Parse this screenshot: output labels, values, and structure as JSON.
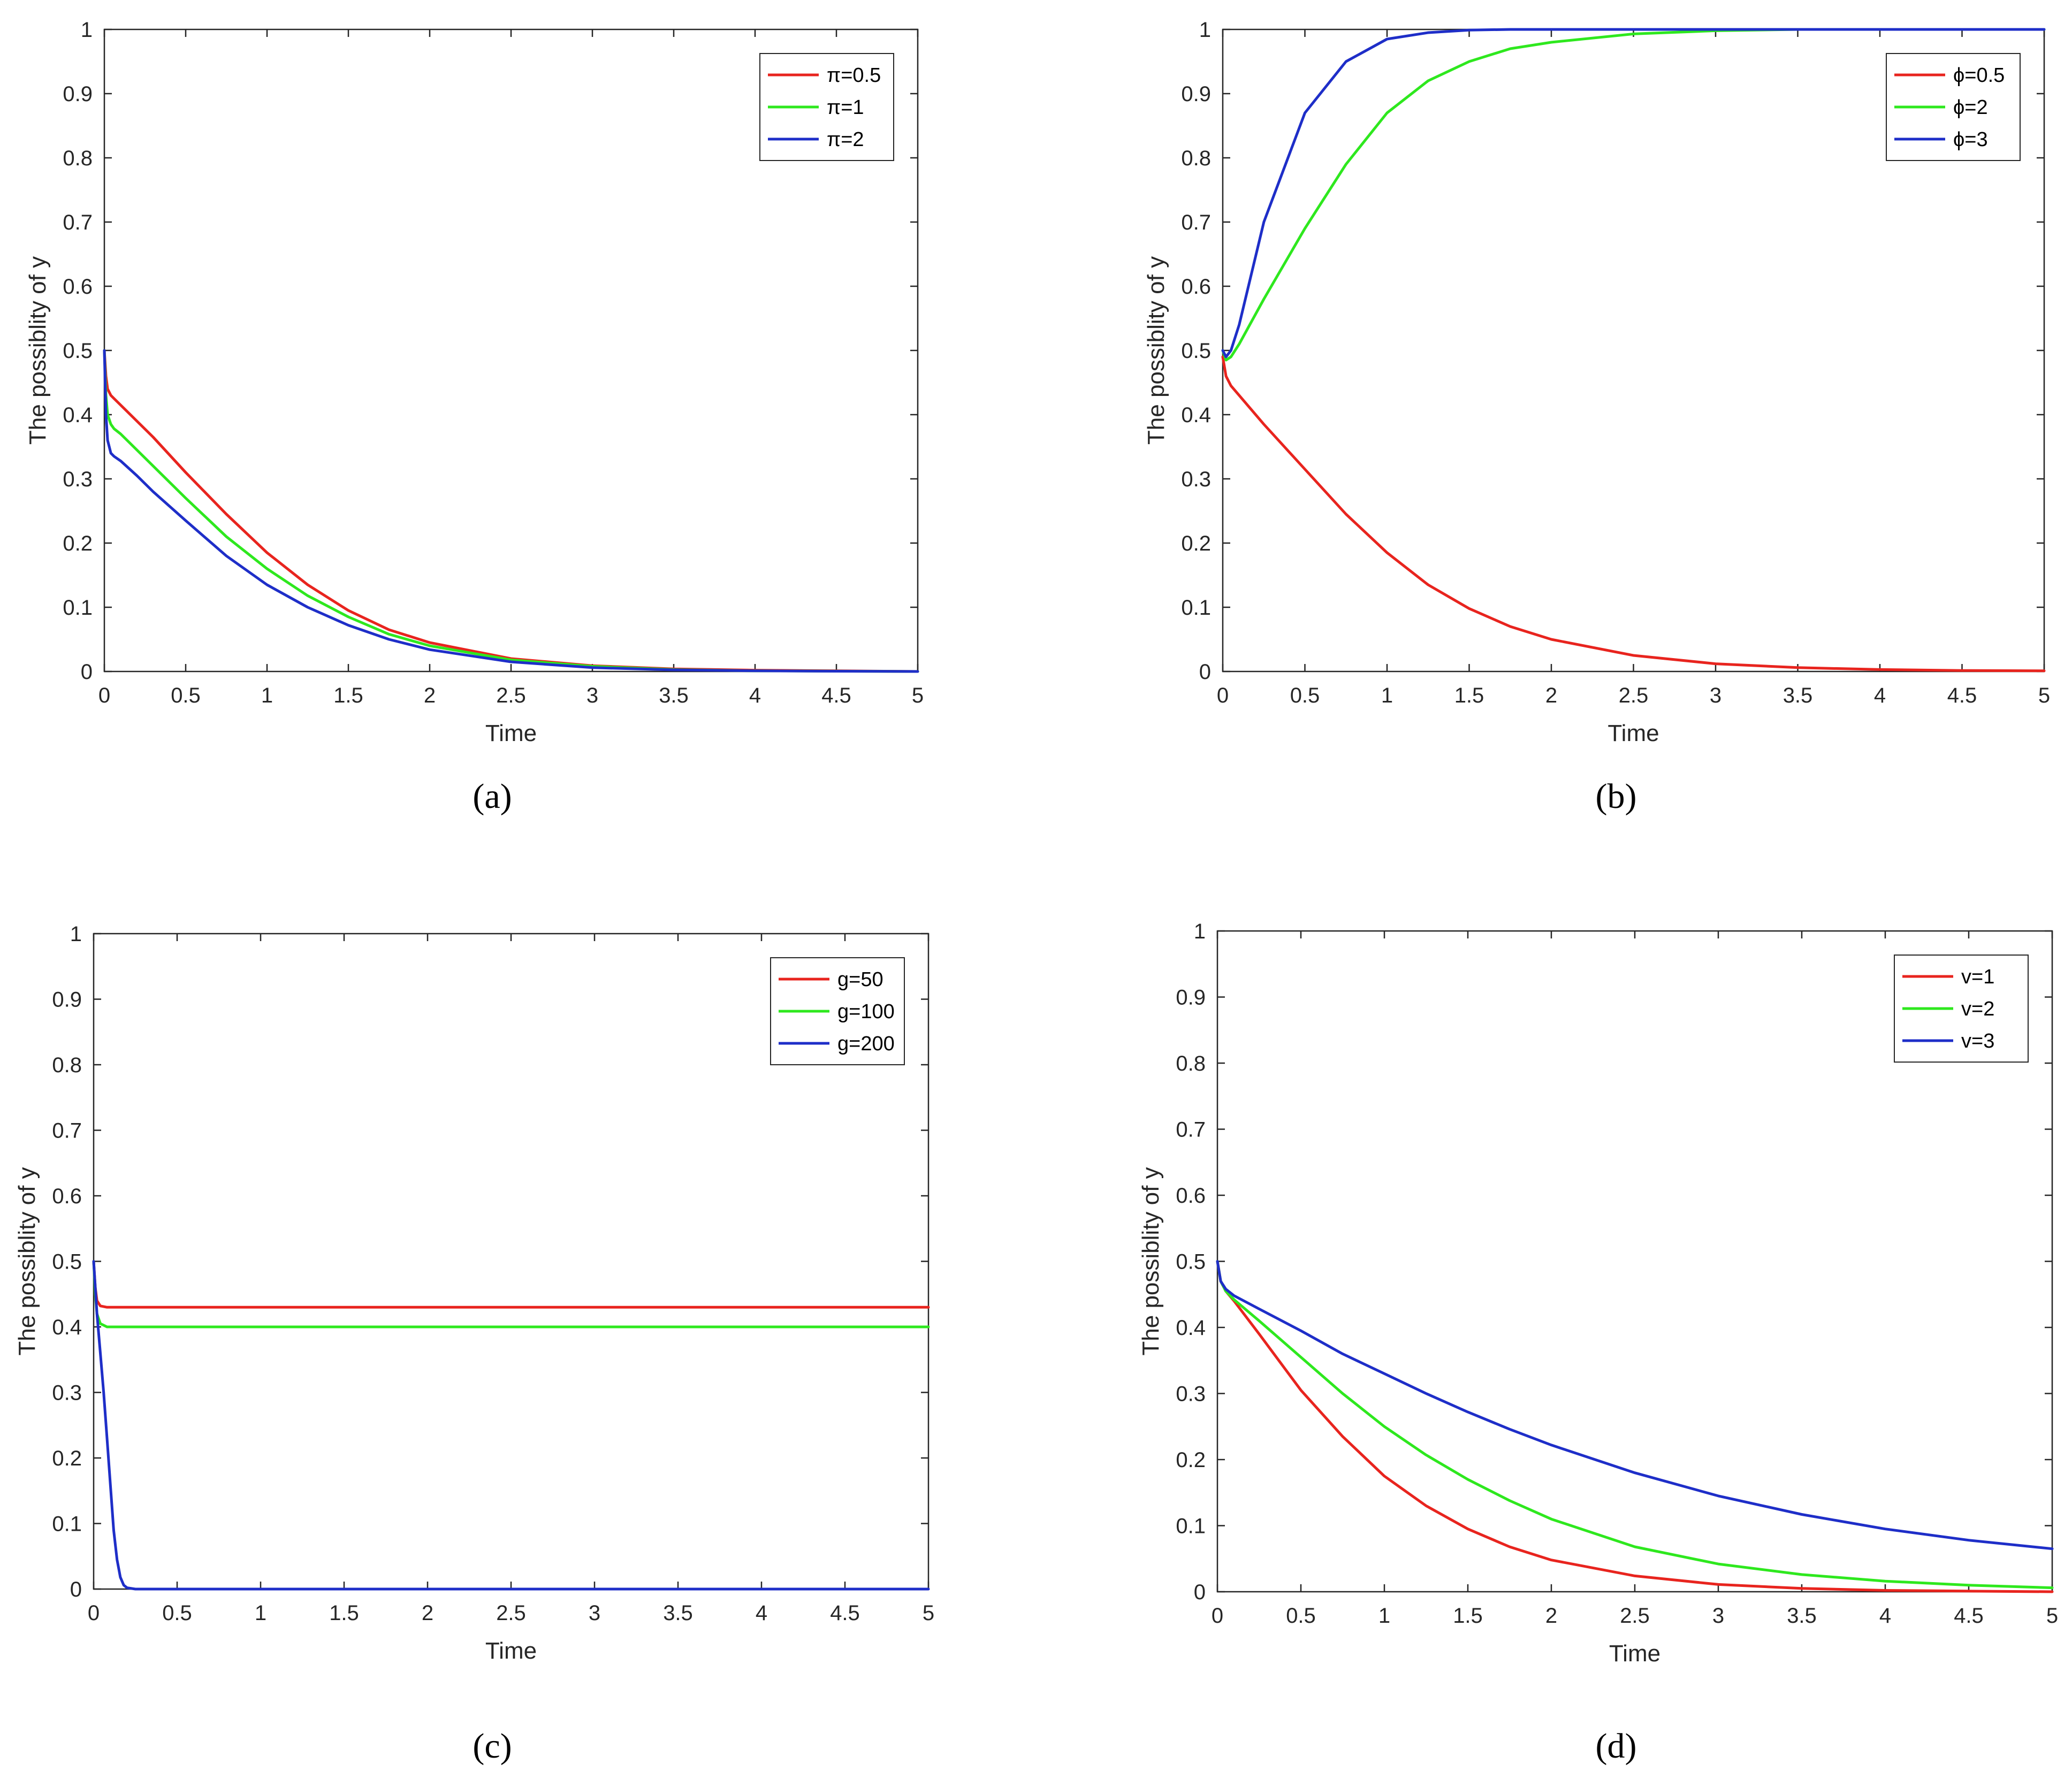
{
  "chart_data": [
    {
      "type": "line",
      "caption": "(a)",
      "xlabel": "Time",
      "ylabel": "The possiblity of y",
      "xlim": [
        0,
        5
      ],
      "ylim": [
        0,
        1
      ],
      "xticks": [
        "0",
        "0.5",
        "1",
        "1.5",
        "2",
        "2.5",
        "3",
        "3.5",
        "4",
        "4.5",
        "5"
      ],
      "yticks": [
        "0",
        "0.1",
        "0.2",
        "0.3",
        "0.4",
        "0.5",
        "0.6",
        "0.7",
        "0.8",
        "0.9",
        "1"
      ],
      "legend_position": "top-right",
      "series": [
        {
          "name": "π=0.5",
          "color": "#e8241e",
          "x": [
            0,
            0.01,
            0.02,
            0.04,
            0.06,
            0.1,
            0.2,
            0.3,
            0.5,
            0.75,
            1,
            1.25,
            1.5,
            1.75,
            2,
            2.5,
            3,
            3.5,
            4,
            4.5,
            5
          ],
          "y": [
            0.5,
            0.46,
            0.44,
            0.43,
            0.425,
            0.415,
            0.39,
            0.365,
            0.31,
            0.245,
            0.185,
            0.135,
            0.095,
            0.065,
            0.045,
            0.02,
            0.009,
            0.004,
            0.002,
            0.001,
            0
          ]
        },
        {
          "name": "π=1",
          "color": "#2ee81e",
          "x": [
            0,
            0.01,
            0.02,
            0.04,
            0.06,
            0.1,
            0.2,
            0.3,
            0.5,
            0.75,
            1,
            1.25,
            1.5,
            1.75,
            2,
            2.5,
            3,
            3.5,
            4,
            4.5,
            5
          ],
          "y": [
            0.5,
            0.43,
            0.4,
            0.385,
            0.378,
            0.37,
            0.345,
            0.32,
            0.27,
            0.21,
            0.16,
            0.118,
            0.085,
            0.058,
            0.04,
            0.018,
            0.008,
            0.003,
            0.001,
            0.0005,
            0
          ]
        },
        {
          "name": "π=2",
          "color": "#1e2ec8",
          "x": [
            0,
            0.01,
            0.02,
            0.04,
            0.06,
            0.1,
            0.2,
            0.3,
            0.5,
            0.75,
            1,
            1.25,
            1.5,
            1.75,
            2,
            2.5,
            3,
            3.5,
            4,
            4.5,
            5
          ],
          "y": [
            0.5,
            0.4,
            0.36,
            0.34,
            0.335,
            0.328,
            0.305,
            0.28,
            0.235,
            0.18,
            0.135,
            0.1,
            0.072,
            0.05,
            0.034,
            0.015,
            0.006,
            0.0025,
            0.001,
            0.0004,
            0
          ]
        }
      ]
    },
    {
      "type": "line",
      "caption": "(b)",
      "xlabel": "Time",
      "ylabel": "The possiblity of y",
      "xlim": [
        0,
        5
      ],
      "ylim": [
        0,
        1
      ],
      "xticks": [
        "0",
        "0.5",
        "1",
        "1.5",
        "2",
        "2.5",
        "3",
        "3.5",
        "4",
        "4.5",
        "5"
      ],
      "yticks": [
        "0",
        "0.1",
        "0.2",
        "0.3",
        "0.4",
        "0.5",
        "0.6",
        "0.7",
        "0.8",
        "0.9",
        "1"
      ],
      "legend_position": "top-right",
      "series": [
        {
          "name": "ϕ=0.5",
          "color": "#e8241e",
          "x": [
            0,
            0.02,
            0.05,
            0.1,
            0.25,
            0.5,
            0.75,
            1,
            1.25,
            1.5,
            1.75,
            2,
            2.5,
            3,
            3.5,
            4,
            4.5,
            5
          ],
          "y": [
            0.49,
            0.46,
            0.445,
            0.43,
            0.385,
            0.315,
            0.245,
            0.185,
            0.135,
            0.098,
            0.07,
            0.05,
            0.025,
            0.012,
            0.006,
            0.003,
            0.0015,
            0.001
          ]
        },
        {
          "name": "ϕ=2",
          "color": "#2ee81e",
          "x": [
            0,
            0.02,
            0.05,
            0.1,
            0.25,
            0.5,
            0.75,
            1,
            1.25,
            1.5,
            1.75,
            2,
            2.5,
            3,
            3.5,
            4,
            4.5,
            5
          ],
          "y": [
            0.5,
            0.485,
            0.49,
            0.51,
            0.58,
            0.69,
            0.79,
            0.87,
            0.92,
            0.95,
            0.97,
            0.98,
            0.993,
            0.998,
            1,
            1,
            1,
            1
          ]
        },
        {
          "name": "ϕ=3",
          "color": "#1e2ec8",
          "x": [
            0,
            0.02,
            0.05,
            0.1,
            0.25,
            0.5,
            0.75,
            1,
            1.25,
            1.5,
            1.75,
            2,
            2.5,
            3,
            3.5,
            4,
            4.5,
            5
          ],
          "y": [
            0.5,
            0.49,
            0.5,
            0.54,
            0.7,
            0.87,
            0.95,
            0.985,
            0.995,
            0.999,
            1,
            1,
            1,
            1,
            1,
            1,
            1,
            1
          ]
        }
      ]
    },
    {
      "type": "line",
      "caption": "(c)",
      "xlabel": "Time",
      "ylabel": "The possiblity of y",
      "xlim": [
        0,
        5
      ],
      "ylim": [
        0,
        1
      ],
      "xticks": [
        "0",
        "0.5",
        "1",
        "1.5",
        "2",
        "2.5",
        "3",
        "3.5",
        "4",
        "4.5",
        "5"
      ],
      "yticks": [
        "0",
        "0.1",
        "0.2",
        "0.3",
        "0.4",
        "0.5",
        "0.6",
        "0.7",
        "0.8",
        "0.9",
        "1"
      ],
      "legend_position": "top-right",
      "series": [
        {
          "name": "g=50",
          "color": "#e8241e",
          "x": [
            0,
            0.01,
            0.02,
            0.04,
            0.08,
            0.15,
            0.5,
            1,
            2,
            3,
            4,
            5
          ],
          "y": [
            0.5,
            0.46,
            0.44,
            0.432,
            0.43,
            0.43,
            0.43,
            0.43,
            0.43,
            0.43,
            0.43,
            0.43
          ]
        },
        {
          "name": "g=100",
          "color": "#2ee81e",
          "x": [
            0,
            0.01,
            0.02,
            0.04,
            0.08,
            0.15,
            0.5,
            1,
            2,
            3,
            4,
            5
          ],
          "y": [
            0.5,
            0.45,
            0.42,
            0.405,
            0.4,
            0.4,
            0.4,
            0.4,
            0.4,
            0.4,
            0.4,
            0.4
          ]
        },
        {
          "name": "g=200",
          "color": "#1e2ec8",
          "x": [
            0,
            0.02,
            0.04,
            0.06,
            0.08,
            0.1,
            0.12,
            0.14,
            0.16,
            0.18,
            0.2,
            0.25,
            0.5,
            1,
            2,
            3,
            4,
            5
          ],
          "y": [
            0.5,
            0.42,
            0.36,
            0.3,
            0.23,
            0.16,
            0.09,
            0.045,
            0.018,
            0.006,
            0.002,
            0,
            0,
            0,
            0,
            0,
            0,
            0
          ]
        }
      ]
    },
    {
      "type": "line",
      "caption": "(d)",
      "xlabel": "Time",
      "ylabel": "The possiblity of y",
      "xlim": [
        0,
        5
      ],
      "ylim": [
        0,
        1
      ],
      "xticks": [
        "0",
        "0.5",
        "1",
        "1.5",
        "2",
        "2.5",
        "3",
        "3.5",
        "4",
        "4.5",
        "5"
      ],
      "yticks": [
        "0",
        "0.1",
        "0.2",
        "0.3",
        "0.4",
        "0.5",
        "0.6",
        "0.7",
        "0.8",
        "0.9",
        "1"
      ],
      "legend_position": "top-right",
      "series": [
        {
          "name": "v=1",
          "color": "#e8241e",
          "x": [
            0,
            0.02,
            0.05,
            0.1,
            0.25,
            0.5,
            0.75,
            1,
            1.25,
            1.5,
            1.75,
            2,
            2.5,
            3,
            3.5,
            4,
            4.5,
            5
          ],
          "y": [
            0.5,
            0.47,
            0.455,
            0.44,
            0.39,
            0.305,
            0.235,
            0.175,
            0.13,
            0.095,
            0.068,
            0.048,
            0.024,
            0.011,
            0.005,
            0.002,
            0.001,
            0
          ]
        },
        {
          "name": "v=2",
          "color": "#2ee81e",
          "x": [
            0,
            0.02,
            0.05,
            0.1,
            0.25,
            0.5,
            0.75,
            1,
            1.25,
            1.5,
            1.75,
            2,
            2.5,
            3,
            3.5,
            4,
            4.5,
            5
          ],
          "y": [
            0.5,
            0.47,
            0.455,
            0.442,
            0.41,
            0.355,
            0.3,
            0.25,
            0.207,
            0.17,
            0.138,
            0.11,
            0.068,
            0.042,
            0.026,
            0.016,
            0.01,
            0.006
          ]
        },
        {
          "name": "v=3",
          "color": "#1e2ec8",
          "x": [
            0,
            0.02,
            0.05,
            0.1,
            0.25,
            0.5,
            0.75,
            1,
            1.25,
            1.5,
            1.75,
            2,
            2.5,
            3,
            3.5,
            4,
            4.5,
            5
          ],
          "y": [
            0.5,
            0.47,
            0.458,
            0.448,
            0.428,
            0.395,
            0.36,
            0.33,
            0.3,
            0.272,
            0.246,
            0.222,
            0.18,
            0.145,
            0.117,
            0.095,
            0.078,
            0.065
          ]
        }
      ]
    }
  ]
}
